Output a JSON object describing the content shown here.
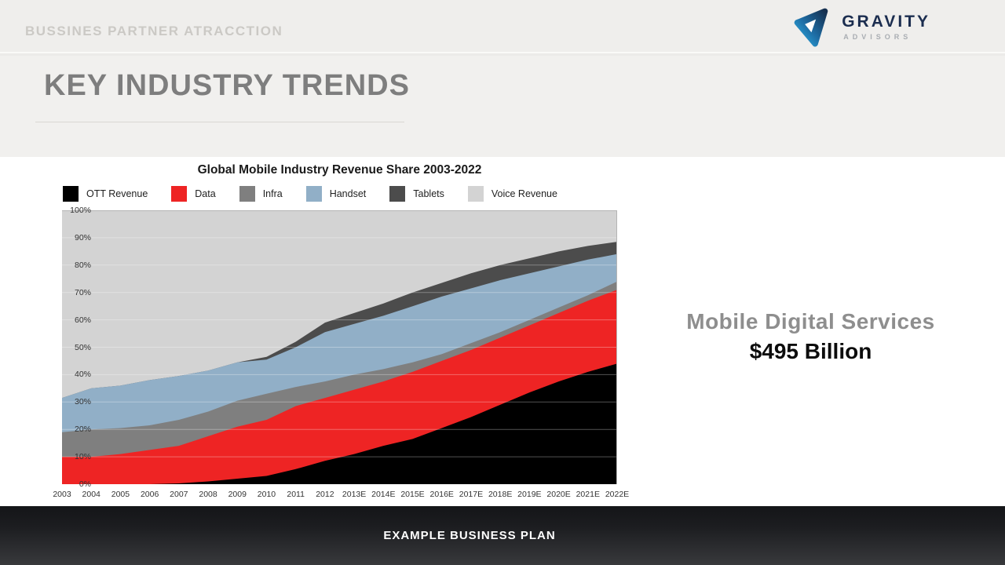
{
  "slide": {
    "header": {
      "breadcrumb": "BUSSINES PARTNER ATRACCTION",
      "logo": {
        "name": "GRAVITY",
        "subname": "ADVISORS",
        "brand_dark": "#15304f",
        "brand_light": "#2fb0e4"
      }
    },
    "title": "KEY INDUSTRY TRENDS",
    "callout": {
      "line1": "Mobile Digital Services",
      "line2": "$495 Billion"
    },
    "footer": "EXAMPLE BUSINESS PLAN"
  },
  "chart_data": {
    "type": "area",
    "stacked": true,
    "title": "Global Mobile Industry Revenue Share 2003-2022",
    "x": [
      "2003",
      "2004",
      "2005",
      "2006",
      "2007",
      "2008",
      "2009",
      "2010",
      "2011",
      "2012",
      "2013E",
      "2014E",
      "2015E",
      "2016E",
      "2017E",
      "2018E",
      "2019E",
      "2020E",
      "2021E",
      "2022E"
    ],
    "series": [
      {
        "name": "OTT Revenue",
        "color": "#000000",
        "values": [
          0,
          0,
          0,
          0,
          0.3,
          1,
          2,
          3,
          5.5,
          8.5,
          11,
          14,
          16.5,
          20.5,
          24.5,
          29,
          33.5,
          37.5,
          41,
          44
        ]
      },
      {
        "name": "Data",
        "color": "#ee2424",
        "values": [
          10,
          10,
          11,
          12.5,
          13.7,
          16.5,
          19,
          20.5,
          23,
          23,
          23.5,
          23.5,
          24.5,
          24.5,
          24.5,
          24.5,
          24.5,
          25,
          26,
          27
        ]
      },
      {
        "name": "Infra",
        "color": "#7f7f7f",
        "values": [
          9,
          10,
          9.5,
          9,
          9.5,
          9,
          9.5,
          9.5,
          7,
          6,
          5.5,
          4.5,
          3.5,
          2.5,
          2.5,
          2,
          2,
          2,
          2,
          3
        ]
      },
      {
        "name": "Handset",
        "color": "#91afc7",
        "values": [
          12.5,
          15,
          15.5,
          16.5,
          16,
          15,
          14,
          12.5,
          14.5,
          18,
          18.5,
          19.5,
          20.5,
          21,
          20,
          19,
          17,
          15,
          13,
          10
        ]
      },
      {
        "name": "Tablets",
        "color": "#4c4c4c",
        "values": [
          0,
          0,
          0,
          0,
          0,
          0,
          0,
          1,
          2,
          3.5,
          4,
          4.5,
          5,
          5,
          5.5,
          5.5,
          5.5,
          5.5,
          5,
          4.5
        ]
      },
      {
        "name": "Voice Revenue",
        "color": "#d3d3d3",
        "values": [
          68.5,
          65,
          64,
          62,
          60.5,
          58.5,
          55.5,
          53.5,
          48,
          41,
          37.5,
          34,
          30,
          26.5,
          23,
          20,
          17.5,
          15,
          13,
          11.5
        ]
      }
    ],
    "ylim": [
      0,
      100
    ],
    "yticks": [
      "100%",
      "90%",
      "80%",
      "70%",
      "60%",
      "50%",
      "40%",
      "30%",
      "20%",
      "10%",
      "0%"
    ],
    "xlabel": "",
    "ylabel": "",
    "legend_position": "top",
    "grid": true,
    "gridline_color": "rgba(255,255,255,0.32)"
  }
}
